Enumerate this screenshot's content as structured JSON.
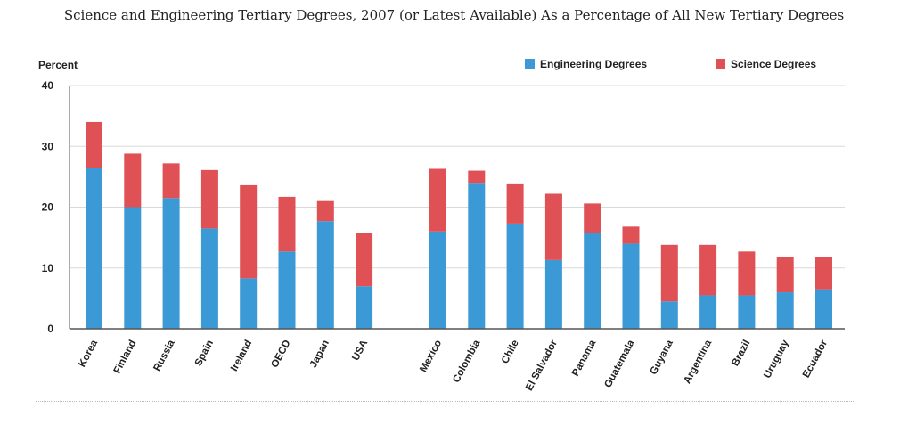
{
  "chart_data": {
    "type": "bar",
    "stacked": true,
    "title": "Science and Engineering Tertiary Degrees, 2007 (or Latest Available) As a Percentage of All New Tertiary Degrees",
    "ylabel": "Percent",
    "ylim": [
      0,
      40
    ],
    "yticks": [
      "0",
      "10",
      "20",
      "30",
      "40"
    ],
    "grid": true,
    "legend_position": "top-right",
    "categories": [
      "Korea",
      "Finland",
      "Russia",
      "Spain",
      "Ireland",
      "OECD",
      "Japan",
      "USA",
      "Mexico",
      "Colombia",
      "Chile",
      "El Salvador",
      "Panama",
      "Guatemala",
      "Guyana",
      "Argentina",
      "Brazil",
      "Uruguay",
      "Ecuador"
    ],
    "series": [
      {
        "name": "Engineering Degrees",
        "color": "#3b9ad6",
        "values": [
          26.5,
          20,
          21.5,
          16.5,
          8.3,
          12.7,
          17.7,
          7,
          16,
          24,
          17.3,
          11.3,
          15.7,
          14,
          4.5,
          5.5,
          5.5,
          6,
          6.5
        ]
      },
      {
        "name": "Science Degrees",
        "color": "#df5154",
        "values": [
          7.5,
          8.8,
          5.7,
          9.6,
          15.3,
          9,
          3.3,
          8.7,
          10.3,
          2,
          6.6,
          10.9,
          4.9,
          2.8,
          9.3,
          8.3,
          7.2,
          5.8,
          5.3
        ]
      }
    ]
  }
}
